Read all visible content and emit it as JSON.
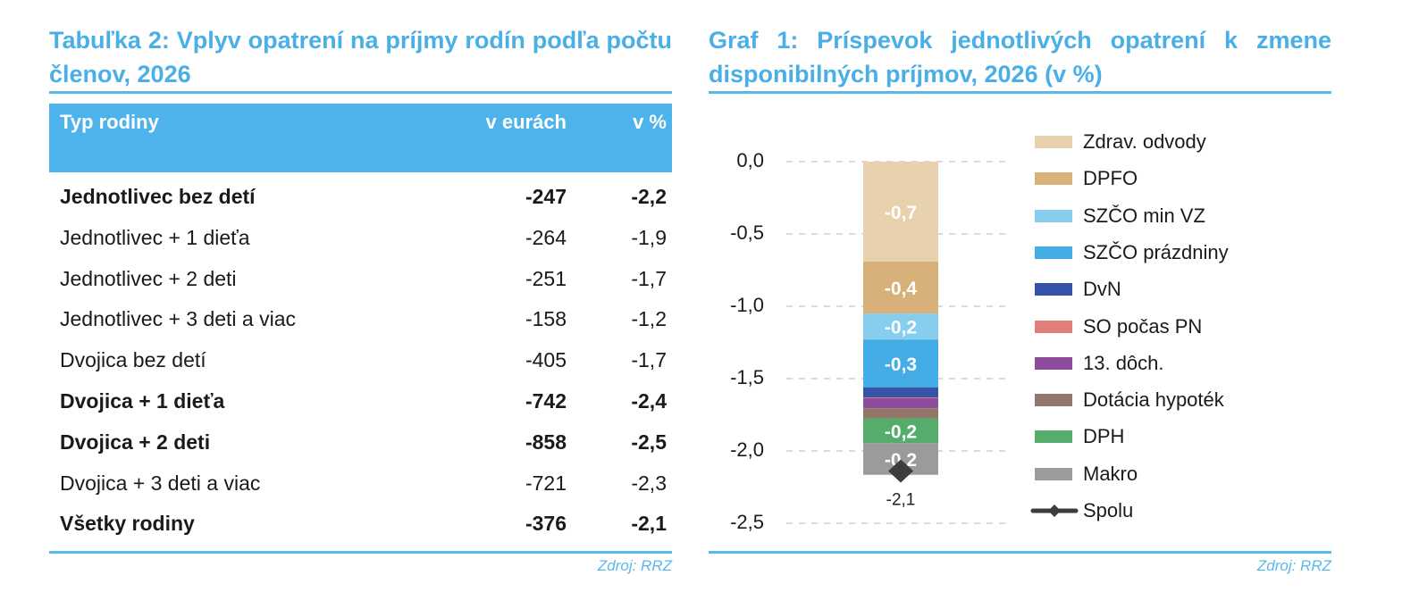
{
  "table": {
    "title": "Tabuľka 2: Vplyv opatrení na príjmy rodín podľa počtu členov, 2026",
    "columns": [
      "Typ rodiny",
      "v eurách",
      "v %"
    ],
    "rows": [
      {
        "type": "Jednotlivec bez detí",
        "eur": "-247",
        "pct": "-2,2",
        "bold": true
      },
      {
        "type": "Jednotlivec + 1 dieťa",
        "eur": "-264",
        "pct": "-1,9",
        "bold": false
      },
      {
        "type": "Jednotlivec + 2 deti",
        "eur": "-251",
        "pct": "-1,7",
        "bold": false
      },
      {
        "type": "Jednotlivec + 3 deti a viac",
        "eur": "-158",
        "pct": "-1,2",
        "bold": false
      },
      {
        "type": "Dvojica bez detí",
        "eur": "-405",
        "pct": "-1,7",
        "bold": false
      },
      {
        "type": "Dvojica + 1 dieťa",
        "eur": "-742",
        "pct": "-2,4",
        "bold": true
      },
      {
        "type": "Dvojica + 2 deti",
        "eur": "-858",
        "pct": "-2,5",
        "bold": true
      },
      {
        "type": "Dvojica + 3 deti a viac",
        "eur": "-721",
        "pct": "-2,3",
        "bold": false
      },
      {
        "type": "Všetky rodiny",
        "eur": "-376",
        "pct": "-2,1",
        "bold": true
      }
    ],
    "source": "Zdroj: RRZ"
  },
  "chart_data": {
    "type": "bar",
    "stacked": true,
    "title": "Graf 1: Príspevok jednotlivých opatrení k zmene disponibilných príjmov, 2026 (v %)",
    "ylim": [
      -2.5,
      0
    ],
    "yticks": [
      "0,0",
      "-0,5",
      "-1,0",
      "-1,5",
      "-2,0",
      "-2,5"
    ],
    "ytick_values": [
      0,
      -0.5,
      -1,
      -1.5,
      -2,
      -2.5
    ],
    "grid": true,
    "legend_position": "right",
    "series": [
      {
        "name": "Zdrav. odvody",
        "value": -0.69,
        "label": "-0,7",
        "color": "#e8d2ae"
      },
      {
        "name": "DPFO",
        "value": -0.36,
        "label": "-0,4",
        "color": "#d8b07a"
      },
      {
        "name": "SZČO min VZ",
        "value": -0.18,
        "label": "-0,2",
        "color": "#86cdee"
      },
      {
        "name": "SZČO prázdniny",
        "value": -0.33,
        "label": "-0,3",
        "color": "#45ade6"
      },
      {
        "name": "DvN",
        "value": -0.07,
        "label": "",
        "color": "#3553a8"
      },
      {
        "name": "SO počas PN",
        "value": -0.005,
        "label": "",
        "color": "#e07f7a"
      },
      {
        "name": "13. dôch.",
        "value": -0.07,
        "label": "",
        "color": "#8e4c9c"
      },
      {
        "name": "Dotácia hypoték",
        "value": -0.07,
        "label": "",
        "color": "#92766a"
      },
      {
        "name": "DPH",
        "value": -0.17,
        "label": "-0,2",
        "color": "#55ad6b"
      },
      {
        "name": "Makro",
        "value": -0.22,
        "label": "-0,2",
        "color": "#9b9b9b"
      }
    ],
    "total": {
      "name": "Spolu",
      "value": -2.12,
      "label": "-2,1",
      "color": "#3d3d3d"
    },
    "source": "Zdroj: RRZ"
  }
}
